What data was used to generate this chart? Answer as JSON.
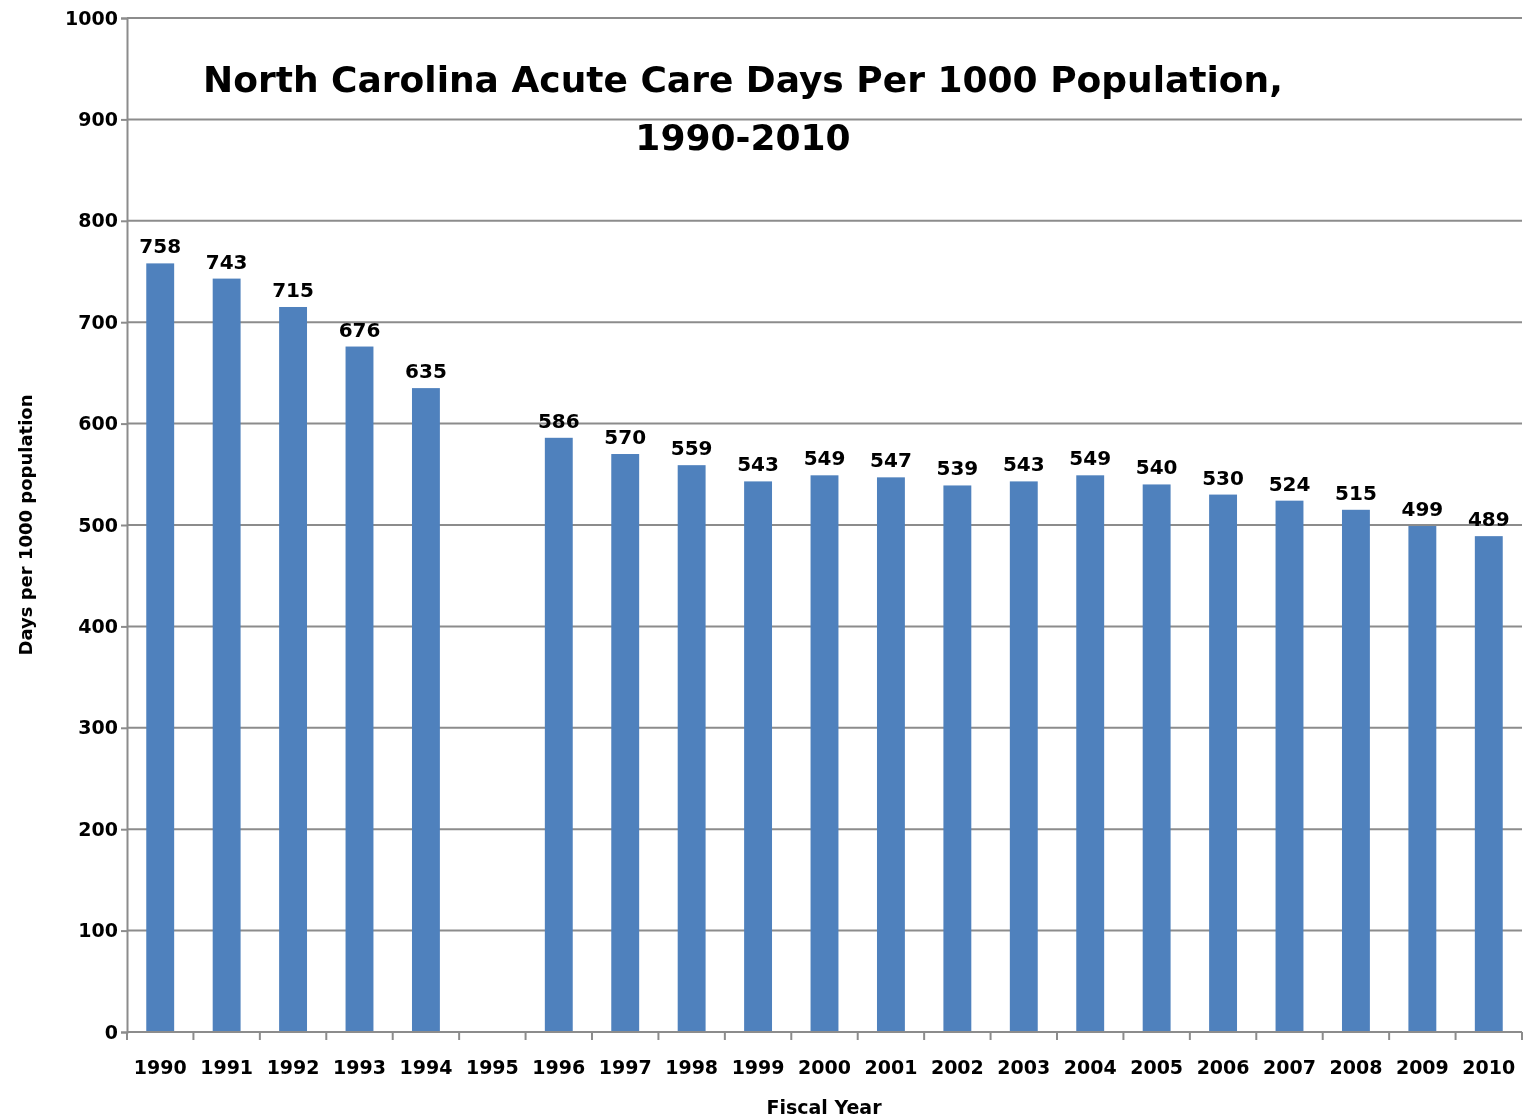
{
  "chart_data": {
    "type": "bar",
    "title": "North Carolina Acute Care Days Per 1000 Population,\n1990-2010",
    "xlabel": "Fiscal Year",
    "ylabel": "Days per 1000 population",
    "categories": [
      "1990",
      "1991",
      "1992",
      "1993",
      "1994",
      "1995",
      "1996",
      "1997",
      "1998",
      "1999",
      "2000",
      "2001",
      "2002",
      "2003",
      "2004",
      "2005",
      "2006",
      "2007",
      "2008",
      "2009",
      "2010"
    ],
    "values": [
      758,
      743,
      715,
      676,
      635,
      null,
      586,
      570,
      559,
      543,
      549,
      547,
      539,
      543,
      549,
      540,
      530,
      524,
      515,
      499,
      489
    ],
    "color": "#4f81bd",
    "ylim": [
      0,
      1000
    ],
    "yticks": [
      0,
      100,
      200,
      300,
      400,
      500,
      600,
      700,
      800,
      900,
      1000
    ],
    "grid": "y",
    "data_labels": true
  }
}
